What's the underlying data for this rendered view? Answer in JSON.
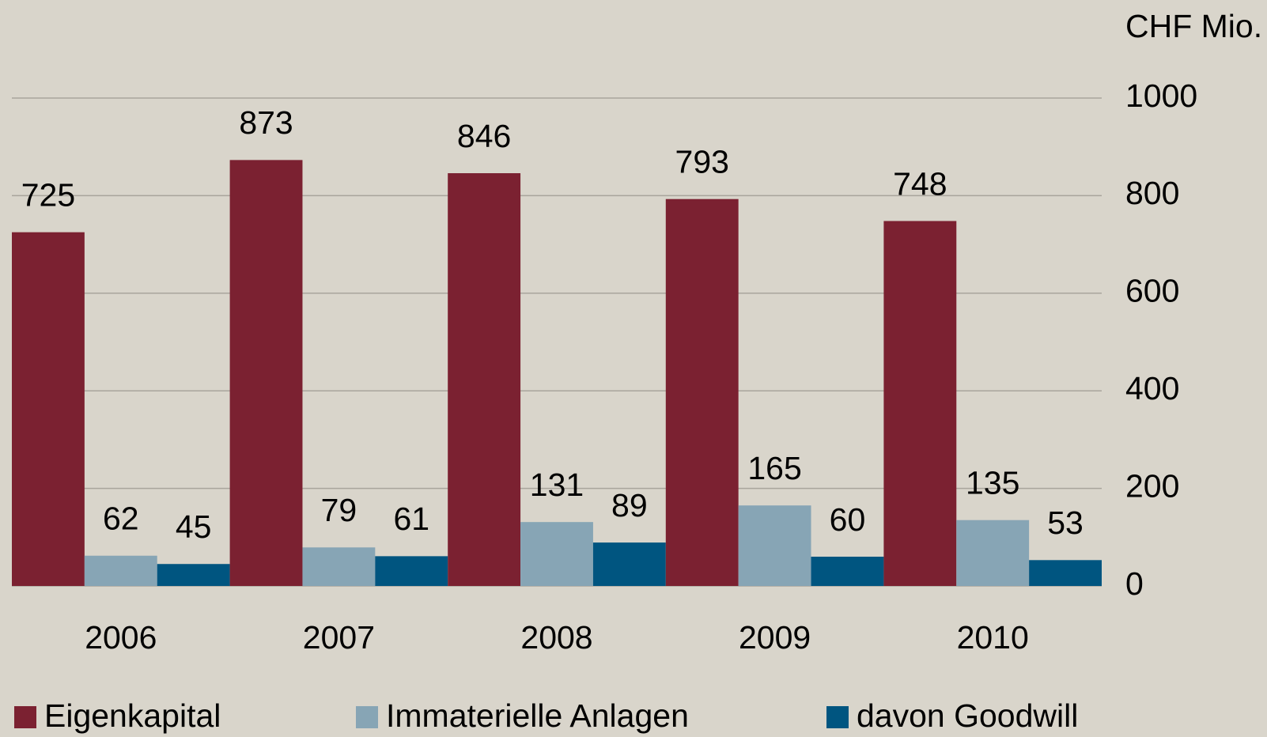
{
  "chart_data": {
    "type": "bar",
    "unit_label": "CHF Mio.",
    "categories": [
      "2006",
      "2007",
      "2008",
      "2009",
      "2010"
    ],
    "series": [
      {
        "name": "Eigenkapital",
        "color": "#7b2131",
        "values": [
          725,
          873,
          846,
          793,
          748
        ]
      },
      {
        "name": "Immaterielle Anlagen",
        "color": "#87a5b5",
        "values": [
          62,
          79,
          131,
          165,
          135
        ]
      },
      {
        "name": "davon Goodwill",
        "color": "#005580",
        "values": [
          45,
          61,
          89,
          60,
          53
        ]
      }
    ],
    "ylim": [
      0,
      1000
    ],
    "yticks": [
      0,
      200,
      400,
      600,
      800,
      1000
    ],
    "grid": true,
    "y_axis_side": "right",
    "legend": "bottom"
  }
}
